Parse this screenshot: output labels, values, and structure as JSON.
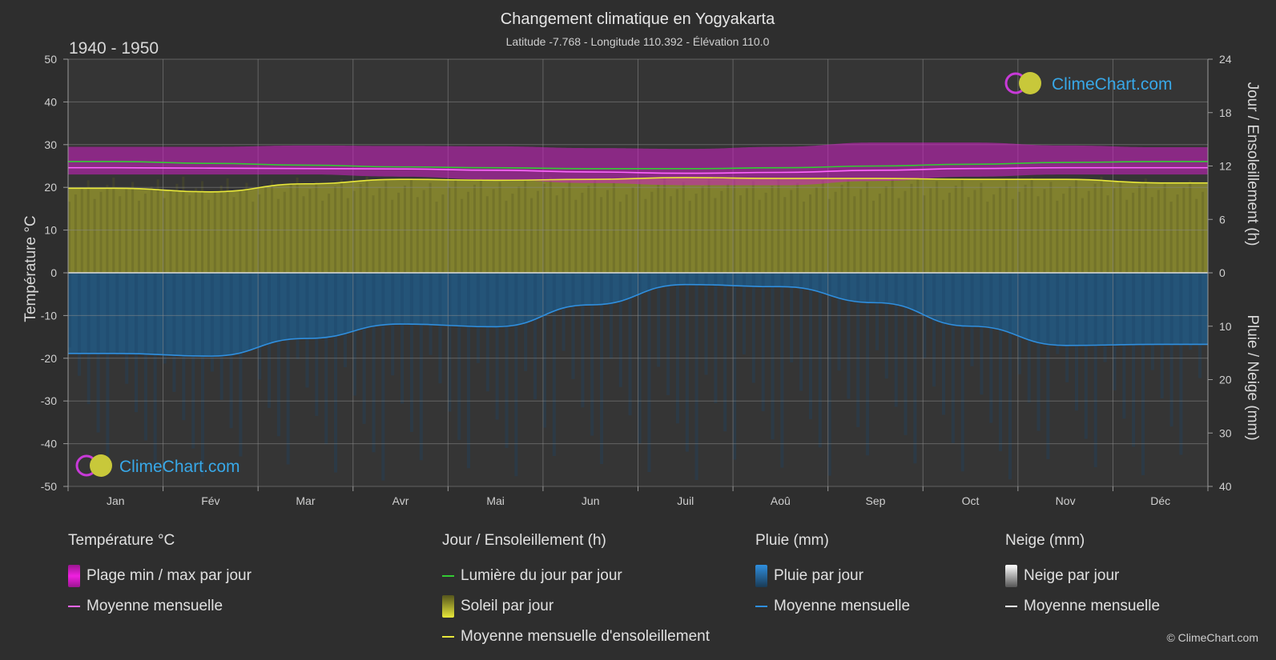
{
  "title": "Changement climatique en Yogyakarta",
  "subtitle": "Latitude -7.768 - Longitude 110.392 - Élévation 110.0",
  "period": "1940 - 1950",
  "watermark": "ClimeChart.com",
  "copyright": "© ClimeChart.com",
  "legend": {
    "temperature": {
      "header": "Température °C",
      "range": "Plage min / max par jour",
      "mean": "Moyenne mensuelle"
    },
    "sun": {
      "header": "Jour / Ensoleillement (h)",
      "daylight": "Lumière du jour par jour",
      "sunshine": "Soleil par jour",
      "sunshine_mean": "Moyenne mensuelle d'ensoleillement"
    },
    "rain": {
      "header": "Pluie (mm)",
      "daily": "Pluie par jour",
      "mean": "Moyenne mensuelle"
    },
    "snow": {
      "header": "Neige (mm)",
      "daily": "Neige par jour",
      "mean": "Moyenne mensuelle"
    }
  },
  "colors": {
    "background": "#2e2e2e",
    "temp_range": "#d01fc4",
    "temp_mean": "#ff66ff",
    "daylight": "#33cc33",
    "sunshine_fill": "#8a8a2e",
    "sunshine_mean": "#e8e83a",
    "rain_fill": "#1f5f8f",
    "rain_mean": "#2f8fdf",
    "snow_mean": "#ffffff",
    "grid": "#8a8a8a"
  },
  "chart_data": {
    "type": "line",
    "categories": [
      "Jan",
      "Fév",
      "Mar",
      "Avr",
      "Mai",
      "Jun",
      "Juil",
      "Aoû",
      "Sep",
      "Oct",
      "Nov",
      "Déc"
    ],
    "y_left": {
      "label": "Température °C",
      "ticks": [
        50,
        40,
        30,
        20,
        10,
        0,
        -10,
        -20,
        -30,
        -40,
        -50
      ],
      "range": [
        -50,
        50
      ]
    },
    "y_right_top": {
      "label": "Jour / Ensoleillement (h)",
      "ticks": [
        24,
        18,
        12,
        6,
        0
      ],
      "range": [
        0,
        24
      ]
    },
    "y_right_bottom": {
      "label": "Pluie / Neige (mm)",
      "ticks": [
        0,
        10,
        20,
        30,
        40
      ],
      "range": [
        0,
        40
      ]
    },
    "series": [
      {
        "name": "Lumière du jour par jour",
        "axis": "hours",
        "values": [
          12.5,
          12.3,
          12.1,
          11.9,
          11.8,
          11.7,
          11.7,
          11.8,
          12.0,
          12.2,
          12.4,
          12.5
        ]
      },
      {
        "name": "Moyenne mensuelle d'ensoleillement",
        "axis": "hours",
        "values": [
          9.5,
          9.1,
          10.0,
          10.5,
          10.4,
          10.5,
          10.7,
          10.6,
          10.6,
          10.5,
          10.5,
          10.1
        ]
      },
      {
        "name": "Moyenne mensuelle",
        "axis": "temperature",
        "values": [
          24.6,
          24.5,
          24.4,
          24.3,
          24.0,
          23.6,
          23.3,
          23.5,
          24.0,
          24.4,
          24.6,
          24.6
        ]
      },
      {
        "name": "Plage min / max par jour (max)",
        "axis": "temperature",
        "values": [
          29.5,
          29.5,
          29.8,
          29.7,
          29.6,
          29.2,
          29.0,
          29.5,
          30.5,
          30.5,
          29.8,
          29.4
        ]
      },
      {
        "name": "Plage min / max par jour (min)",
        "axis": "temperature",
        "values": [
          23.0,
          23.0,
          23.0,
          22.5,
          21.8,
          21.0,
          20.5,
          20.5,
          21.5,
          22.5,
          23.0,
          23.0
        ]
      },
      {
        "name": "Moyenne mensuelle (pluie)",
        "axis": "rain",
        "values": [
          15.1,
          15.6,
          12.3,
          9.6,
          10.1,
          6.0,
          2.2,
          2.6,
          5.6,
          10.0,
          13.6,
          13.4
        ]
      },
      {
        "name": "Moyenne mensuelle (neige)",
        "axis": "rain",
        "values": [
          0,
          0,
          0,
          0,
          0,
          0,
          0,
          0,
          0,
          0,
          0,
          0
        ]
      }
    ]
  }
}
